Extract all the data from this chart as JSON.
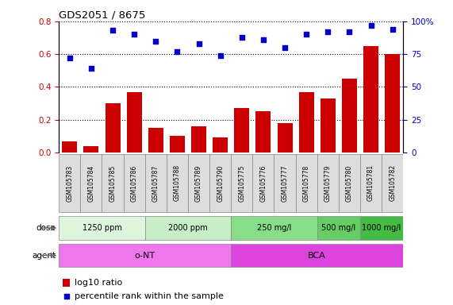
{
  "title": "GDS2051 / 8675",
  "samples": [
    "GSM105783",
    "GSM105784",
    "GSM105785",
    "GSM105786",
    "GSM105787",
    "GSM105788",
    "GSM105789",
    "GSM105790",
    "GSM105775",
    "GSM105776",
    "GSM105777",
    "GSM105778",
    "GSM105779",
    "GSM105780",
    "GSM105781",
    "GSM105782"
  ],
  "log10_ratio": [
    0.07,
    0.04,
    0.3,
    0.37,
    0.15,
    0.1,
    0.16,
    0.09,
    0.27,
    0.25,
    0.18,
    0.37,
    0.33,
    0.45,
    0.65,
    0.6
  ],
  "percentile_rank": [
    72,
    64,
    93,
    90,
    85,
    77,
    83,
    74,
    88,
    86,
    80,
    90,
    92,
    92,
    97,
    94
  ],
  "bar_color": "#cc0000",
  "dot_color": "#0000cc",
  "ylim_left": [
    0,
    0.8
  ],
  "ylim_right": [
    0,
    100
  ],
  "yticks_left": [
    0.0,
    0.2,
    0.4,
    0.6,
    0.8
  ],
  "yticks_right": [
    0,
    25,
    50,
    75,
    100
  ],
  "dose_groups": [
    {
      "label": "1250 ppm",
      "start": 0,
      "end": 3,
      "color": "#ddf5dd"
    },
    {
      "label": "2000 ppm",
      "start": 4,
      "end": 7,
      "color": "#c8eec8"
    },
    {
      "label": "250 mg/l",
      "start": 8,
      "end": 11,
      "color": "#88dd88"
    },
    {
      "label": "500 mg/l",
      "start": 12,
      "end": 13,
      "color": "#66cc66"
    },
    {
      "label": "1000 mg/l",
      "start": 14,
      "end": 15,
      "color": "#44bb44"
    }
  ],
  "agent_groups": [
    {
      "label": "o-NT",
      "start": 0,
      "end": 7,
      "color": "#ee77ee"
    },
    {
      "label": "BCA",
      "start": 8,
      "end": 15,
      "color": "#dd44dd"
    }
  ],
  "dose_label": "dose",
  "agent_label": "agent",
  "legend_bar_label": "log10 ratio",
  "legend_dot_label": "percentile rank within the sample",
  "label_box_color": "#dddddd",
  "label_box_edge_color": "#888888"
}
